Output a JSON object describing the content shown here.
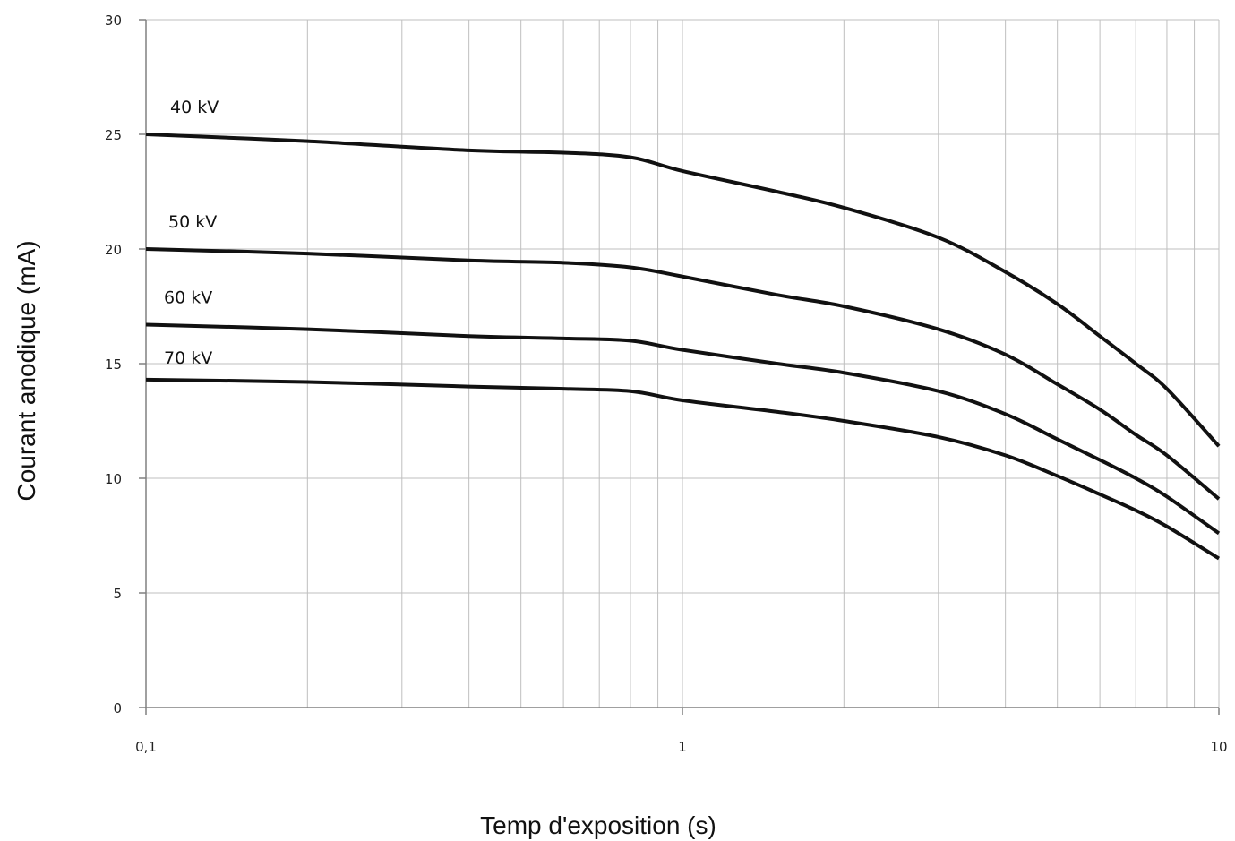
{
  "chart_data": {
    "type": "line",
    "title": "",
    "xlabel": "Temp d'exposition (s)",
    "ylabel": "Courant anodique (mA)",
    "x_scale": "log",
    "xlim": [
      0.1,
      10
    ],
    "ylim": [
      0,
      30
    ],
    "x_ticks": [
      {
        "value": 0.1,
        "label": "0,1"
      },
      {
        "value": 1,
        "label": "1"
      },
      {
        "value": 10,
        "label": "10"
      }
    ],
    "y_ticks": [
      {
        "value": 0,
        "label": "0"
      },
      {
        "value": 5,
        "label": "5"
      },
      {
        "value": 10,
        "label": "10"
      },
      {
        "value": 15,
        "label": "15"
      },
      {
        "value": 20,
        "label": "20"
      },
      {
        "value": 25,
        "label": "25"
      },
      {
        "value": 30,
        "label": "30"
      }
    ],
    "grid": true,
    "legend": "labels above each curve at the left",
    "colors": {
      "line": "#111111",
      "grid": "#bfbfbf",
      "axis": "#808080"
    },
    "series": [
      {
        "name": "40 kV",
        "x": [
          0.1,
          0.2,
          0.4,
          0.6,
          0.8,
          1,
          1.5,
          2,
          3,
          4,
          5,
          6,
          7,
          8,
          10
        ],
        "y": [
          25.0,
          24.7,
          24.3,
          24.2,
          24.0,
          23.4,
          22.5,
          21.8,
          20.5,
          19.0,
          17.6,
          16.2,
          15.0,
          13.9,
          11.4
        ]
      },
      {
        "name": "50 kV",
        "x": [
          0.1,
          0.2,
          0.4,
          0.6,
          0.8,
          1,
          1.5,
          2,
          3,
          4,
          5,
          6,
          7,
          8,
          10
        ],
        "y": [
          20.0,
          19.8,
          19.5,
          19.4,
          19.2,
          18.8,
          18.0,
          17.5,
          16.5,
          15.4,
          14.1,
          13.0,
          11.9,
          11.0,
          9.1
        ]
      },
      {
        "name": "60 kV",
        "x": [
          0.1,
          0.2,
          0.4,
          0.6,
          0.8,
          1,
          1.5,
          2,
          3,
          4,
          5,
          6,
          7,
          8,
          10
        ],
        "y": [
          16.7,
          16.5,
          16.2,
          16.1,
          16.0,
          15.6,
          15.0,
          14.6,
          13.8,
          12.8,
          11.7,
          10.8,
          10.0,
          9.2,
          7.6
        ]
      },
      {
        "name": "70 kV",
        "x": [
          0.1,
          0.2,
          0.4,
          0.6,
          0.8,
          1,
          1.5,
          2,
          3,
          4,
          5,
          6,
          7,
          8,
          10
        ],
        "y": [
          14.3,
          14.2,
          14.0,
          13.9,
          13.8,
          13.4,
          12.9,
          12.5,
          11.8,
          11.0,
          10.1,
          9.3,
          8.6,
          7.9,
          6.5
        ]
      }
    ]
  }
}
